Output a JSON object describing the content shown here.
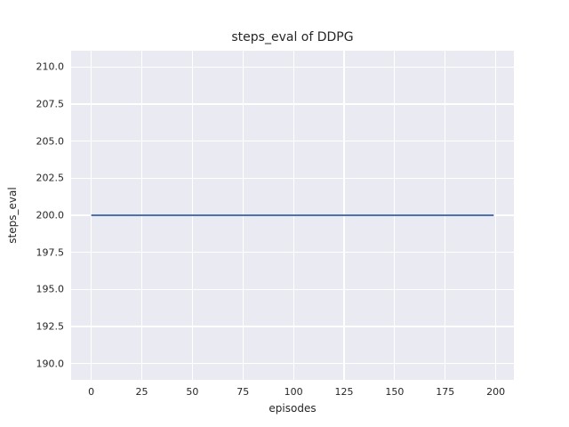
{
  "chart_data": {
    "type": "line",
    "title": "steps_eval of DDPG",
    "xlabel": "episodes",
    "ylabel": "steps_eval",
    "xlim": [
      -9.95,
      208.95
    ],
    "ylim": [
      188.9,
      211.1
    ],
    "grid": true,
    "legend": false,
    "plot_background": "#EAEAF2",
    "grid_color": "#FFFFFF",
    "text_color": "#262626",
    "xticks": [
      {
        "v": 0,
        "label": "0"
      },
      {
        "v": 25,
        "label": "25"
      },
      {
        "v": 50,
        "label": "50"
      },
      {
        "v": 75,
        "label": "75"
      },
      {
        "v": 100,
        "label": "100"
      },
      {
        "v": 125,
        "label": "125"
      },
      {
        "v": 150,
        "label": "150"
      },
      {
        "v": 175,
        "label": "175"
      },
      {
        "v": 200,
        "label": "200"
      }
    ],
    "yticks": [
      {
        "v": 190.0,
        "label": "190.0"
      },
      {
        "v": 192.5,
        "label": "192.5"
      },
      {
        "v": 195.0,
        "label": "195.0"
      },
      {
        "v": 197.5,
        "label": "197.5"
      },
      {
        "v": 200.0,
        "label": "200.0"
      },
      {
        "v": 202.5,
        "label": "202.5"
      },
      {
        "v": 205.0,
        "label": "205.0"
      },
      {
        "v": 207.5,
        "label": "207.5"
      },
      {
        "v": 210.0,
        "label": "210.0"
      }
    ],
    "series": [
      {
        "name": "steps_eval",
        "color": "#4C72B0",
        "line_width": 2,
        "points": [
          [
            0,
            200
          ],
          [
            199,
            200
          ]
        ]
      }
    ]
  }
}
